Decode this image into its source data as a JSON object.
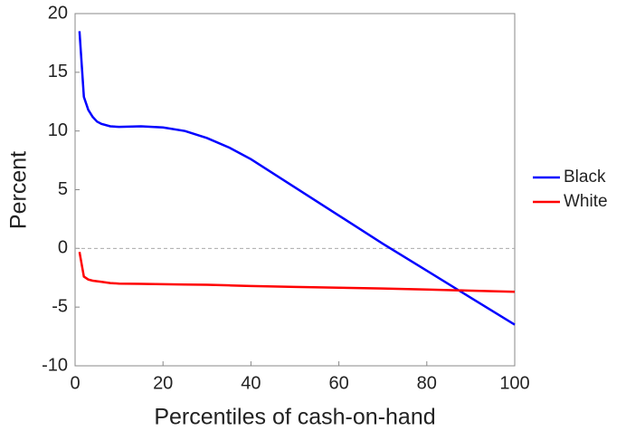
{
  "chart_data": {
    "type": "line",
    "xlabel": "Percentiles of cash-on-hand",
    "ylabel": "Percent",
    "x": [
      1,
      2,
      3,
      4,
      5,
      6,
      8,
      10,
      15,
      20,
      25,
      30,
      35,
      40,
      50,
      60,
      70,
      80,
      90,
      100
    ],
    "series": [
      {
        "name": "Black",
        "color": "#0000ff",
        "values": [
          18.5,
          12.9,
          11.8,
          11.2,
          10.8,
          10.6,
          10.4,
          10.35,
          10.4,
          10.3,
          10.0,
          9.4,
          8.6,
          7.6,
          5.2,
          2.8,
          0.4,
          -1.9,
          -4.2,
          -6.5
        ]
      },
      {
        "name": "White",
        "color": "#ff0000",
        "values": [
          -0.3,
          -2.4,
          -2.65,
          -2.75,
          -2.8,
          -2.85,
          -2.95,
          -3.0,
          -3.02,
          -3.05,
          -3.08,
          -3.1,
          -3.15,
          -3.2,
          -3.28,
          -3.35,
          -3.42,
          -3.5,
          -3.6,
          -3.7
        ]
      }
    ],
    "reference_line": 0,
    "xlim": [
      0,
      100
    ],
    "xticks": [
      0,
      20,
      40,
      60,
      80,
      100
    ],
    "ylim": [
      -10,
      20
    ],
    "yticks": [
      -10,
      -5,
      0,
      5,
      10,
      15,
      20
    ],
    "legend": "right"
  }
}
